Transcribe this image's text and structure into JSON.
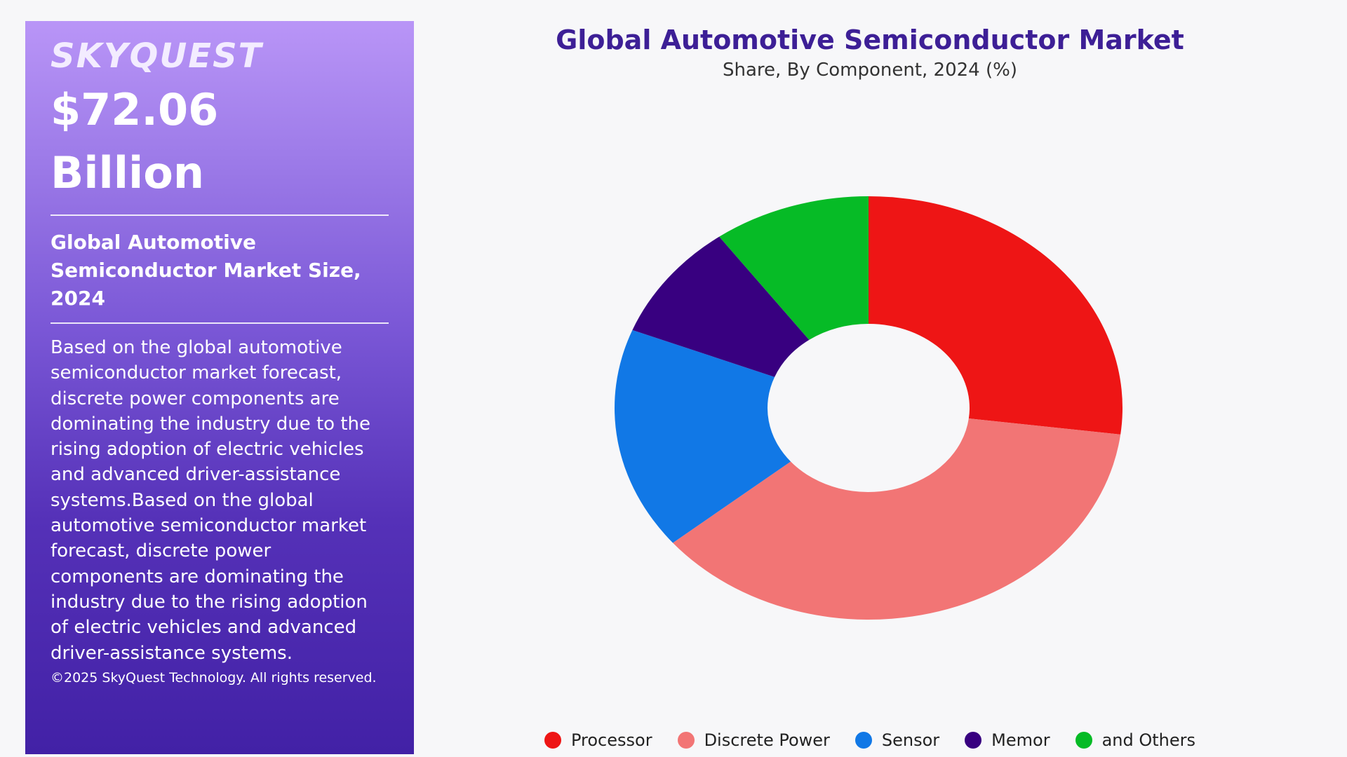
{
  "panel": {
    "logo": "SKYQUEST",
    "value_line1": "$72.06",
    "value_line2": "Billion",
    "subtitle_line1": "Global Automotive",
    "subtitle_line2": "Semiconductor Market Size,",
    "subtitle_line3": "2024",
    "description": "Based on the global automotive semiconductor market forecast, discrete power components are dominating the industry due to the rising adoption of electric vehicles and advanced driver-assistance systems.Based on the global automotive semiconductor market forecast, discrete power components are dominating the industry due to the rising adoption of electric vehicles and advanced driver-assistance systems.",
    "copyright": "©2025 SkyQuest Technology. All rights reserved."
  },
  "chart_data": {
    "type": "pie",
    "variant": "donut",
    "title": "Global Automotive Semiconductor Market",
    "subtitle": "Share, By Component, 2024 (%)",
    "legend_position": "bottom",
    "categories": [
      "Processor",
      "Discrete Power",
      "Sensor",
      "Memor",
      "and Others"
    ],
    "values": [
      27,
      37,
      17,
      9,
      10
    ],
    "colors": [
      "#ee1515",
      "#f27575",
      "#1178e6",
      "#380080",
      "#06bb26"
    ]
  }
}
